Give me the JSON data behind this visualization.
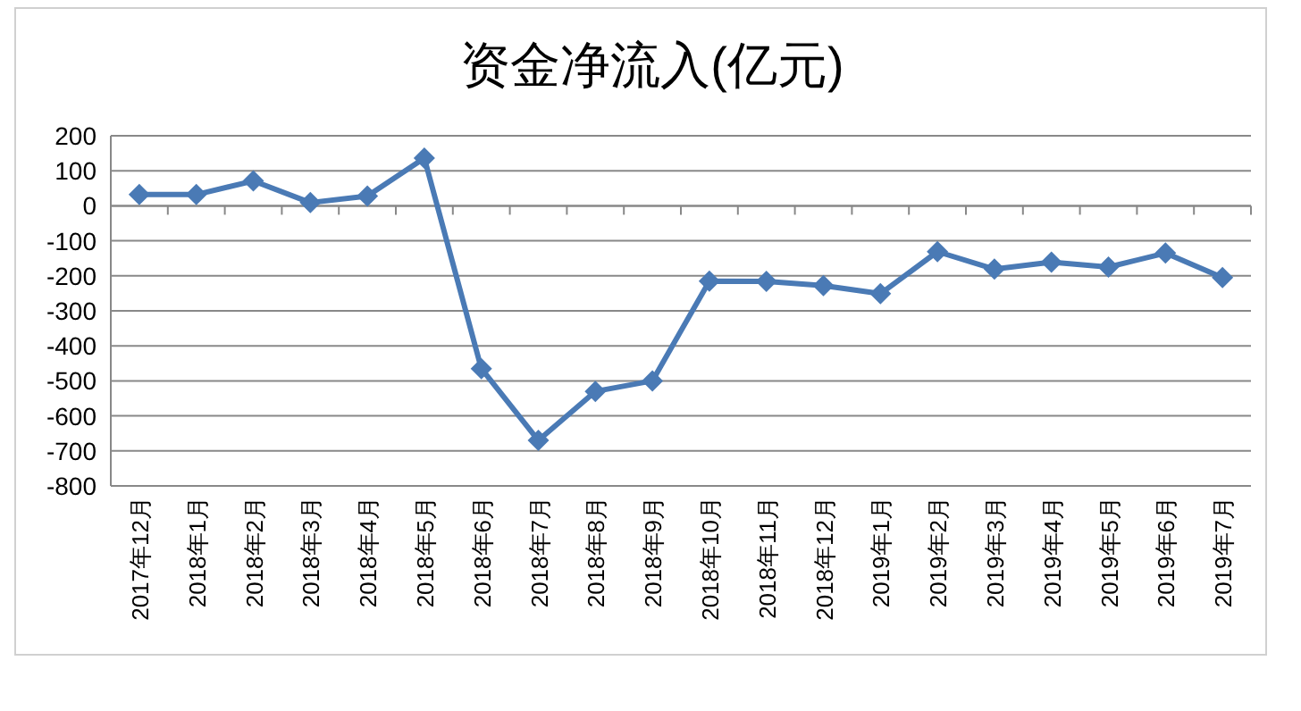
{
  "chart_data": {
    "type": "line",
    "title": "资金净流入(亿元)",
    "categories": [
      "2017年12月",
      "2018年1月",
      "2018年2月",
      "2018年3月",
      "2018年4月",
      "2018年5月",
      "2018年6月",
      "2018年7月",
      "2018年8月",
      "2018年9月",
      "2018年10月",
      "2018年11月",
      "2018年12月",
      "2019年1月",
      "2019年2月",
      "2019年3月",
      "2019年4月",
      "2019年5月",
      "2019年6月",
      "2019年7月"
    ],
    "series": [
      {
        "color": "#4a7ab5",
        "values": [
          32,
          32,
          71,
          9,
          28,
          136,
          -465,
          -670,
          -530,
          -500,
          -215,
          -216,
          -228,
          -251,
          -131,
          -181,
          -161,
          -175,
          -135,
          -205
        ]
      }
    ],
    "ylim": [
      -800,
      200
    ],
    "yticks": [
      -800,
      -700,
      -600,
      -500,
      -400,
      -300,
      -200,
      -100,
      0,
      100,
      200
    ],
    "grid": "y",
    "marker": "diamond",
    "line_style": "solid"
  }
}
